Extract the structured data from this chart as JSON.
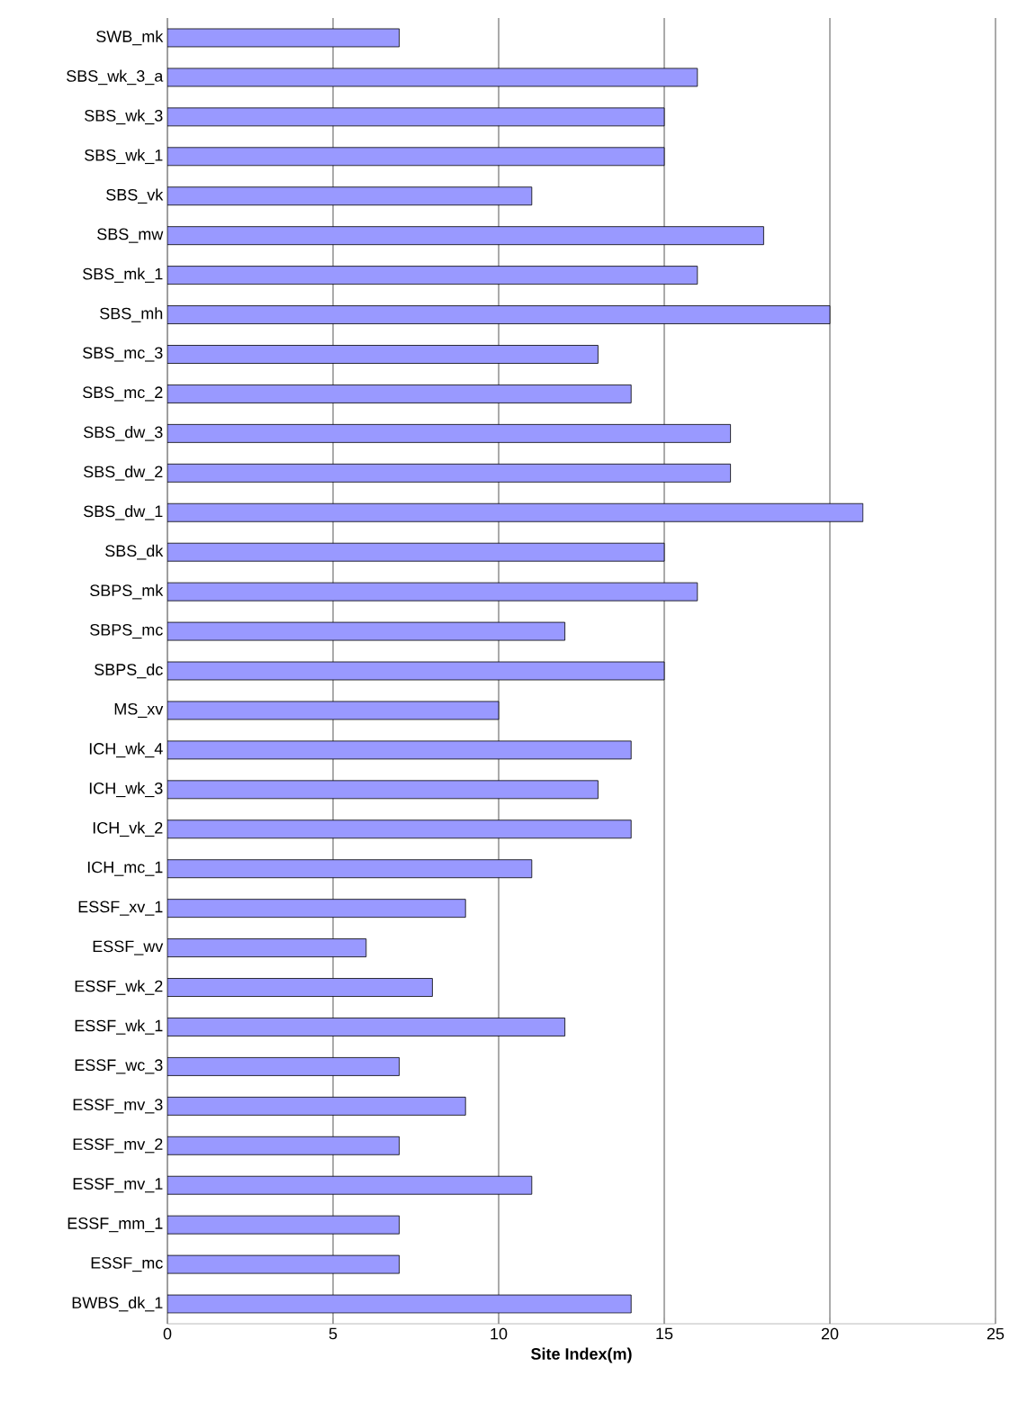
{
  "chart_data": {
    "type": "bar",
    "orientation": "horizontal",
    "xlabel": "Site Index(m)",
    "categories": [
      "SWB_mk",
      "SBS_wk_3_a",
      "SBS_wk_3",
      "SBS_wk_1",
      "SBS_vk",
      "SBS_mw",
      "SBS_mk_1",
      "SBS_mh",
      "SBS_mc_3",
      "SBS_mc_2",
      "SBS_dw_3",
      "SBS_dw_2",
      "SBS_dw_1",
      "SBS_dk",
      "SBPS_mk",
      "SBPS_mc",
      "SBPS_dc",
      "MS_xv",
      "ICH_wk_4",
      "ICH_wk_3",
      "ICH_vk_2",
      "ICH_mc_1",
      "ESSF_xv_1",
      "ESSF_wv",
      "ESSF_wk_2",
      "ESSF_wk_1",
      "ESSF_wc_3",
      "ESSF_mv_3",
      "ESSF_mv_2",
      "ESSF_mv_1",
      "ESSF_mm_1",
      "ESSF_mc",
      "BWBS_dk_1"
    ],
    "values": [
      7,
      16,
      15,
      15,
      11,
      18,
      16,
      20,
      13,
      14,
      17,
      17,
      21,
      15,
      16,
      12,
      15,
      10,
      14,
      13,
      14,
      11,
      9,
      6,
      8,
      12,
      7,
      9,
      7,
      11,
      7,
      7,
      14
    ],
    "color": "#9999ff",
    "xlim": [
      0,
      25
    ],
    "xticks": [
      0,
      5,
      10,
      15,
      20,
      25
    ],
    "grid": "x"
  }
}
